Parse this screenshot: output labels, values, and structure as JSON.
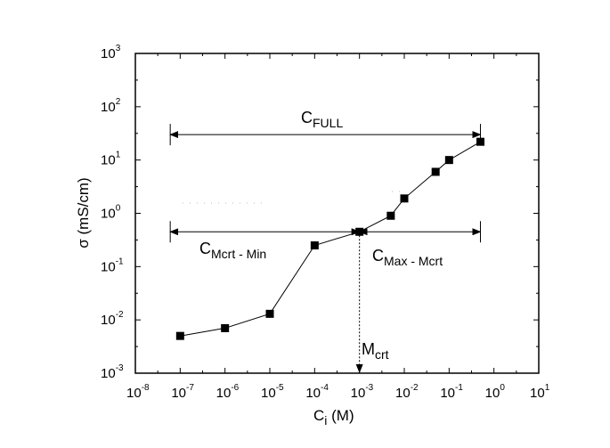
{
  "chart_data": {
    "type": "scatter",
    "title": "",
    "xlabel": {
      "main": "C",
      "sub": "i",
      "unit": " (M)"
    },
    "ylabel": "σ (mS/cm)",
    "x_scale": "log",
    "y_scale": "log",
    "xlim": [
      1e-08,
      10
    ],
    "ylim": [
      0.001,
      1000
    ],
    "grid": false,
    "x_ticks": [
      {
        "base": "10",
        "exp": "-8"
      },
      {
        "base": "10",
        "exp": "-7"
      },
      {
        "base": "10",
        "exp": "-6"
      },
      {
        "base": "10",
        "exp": "-5"
      },
      {
        "base": "10",
        "exp": "-4"
      },
      {
        "base": "10",
        "exp": "-3"
      },
      {
        "base": "10",
        "exp": "-2"
      },
      {
        "base": "10",
        "exp": "-1"
      },
      {
        "base": "10",
        "exp": "0"
      },
      {
        "base": "10",
        "exp": "1"
      }
    ],
    "y_ticks": [
      {
        "base": "10",
        "exp": "-3"
      },
      {
        "base": "10",
        "exp": "-2"
      },
      {
        "base": "10",
        "exp": "-1"
      },
      {
        "base": "10",
        "exp": "0"
      },
      {
        "base": "10",
        "exp": "1"
      },
      {
        "base": "10",
        "exp": "2"
      },
      {
        "base": "10",
        "exp": "3"
      }
    ],
    "series": [
      {
        "x": [
          1e-07,
          1e-06,
          1e-05,
          0.0001,
          0.001,
          0.005,
          0.01,
          0.05,
          0.1,
          0.5
        ],
        "y": [
          0.005,
          0.007,
          0.013,
          0.25,
          0.45,
          0.9,
          1.9,
          6.0,
          10,
          22
        ],
        "marker": "square",
        "color": "#000000"
      }
    ],
    "annotations": {
      "c_full": {
        "main": "C",
        "sub": "FULL",
        "x_range": [
          6e-08,
          0.5
        ],
        "y": 30
      },
      "c_mcrt_min": {
        "main": "C",
        "sub": "Mcrt - Min",
        "x_range": [
          6e-08,
          0.001
        ],
        "y": 0.45
      },
      "c_max_mcrt": {
        "main": "C",
        "sub": "Max - Mcrt",
        "x_range": [
          0.001,
          0.5
        ],
        "y": 0.45
      },
      "m_crt": {
        "main": "M",
        "sub": "crt",
        "x": 0.001
      }
    }
  }
}
